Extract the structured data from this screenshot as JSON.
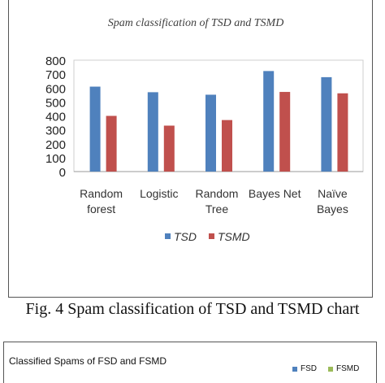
{
  "chart_data": [
    {
      "type": "bar",
      "title": "Spam classification of TSD and TSMD",
      "categories": [
        [
          "Random",
          "forest"
        ],
        [
          "Logistic"
        ],
        [
          "Random",
          "Tree"
        ],
        [
          "Bayes Net"
        ],
        [
          "Naïve",
          "Bayes"
        ]
      ],
      "series": [
        {
          "name": "TSD",
          "color": "#4f81bd",
          "values": [
            610,
            570,
            552,
            722,
            678
          ]
        },
        {
          "name": "TSMD",
          "color": "#c0504d",
          "values": [
            400,
            330,
            370,
            572,
            562
          ]
        }
      ],
      "ylim": [
        0,
        800
      ],
      "yticks": [
        0,
        100,
        200,
        300,
        400,
        500,
        600,
        700,
        800
      ],
      "grid": false,
      "legend_position": "bottom"
    },
    {
      "type": "bar",
      "title": "Classified Spams of FSD and FSMD",
      "series": [
        {
          "name": "FSD",
          "color": "#4f81bd"
        },
        {
          "name": "FSMD",
          "color": "#9bbb59"
        }
      ],
      "legend_position": "top-right"
    }
  ],
  "caption": "Fig. 4 Spam classification of TSD and TSMD chart"
}
